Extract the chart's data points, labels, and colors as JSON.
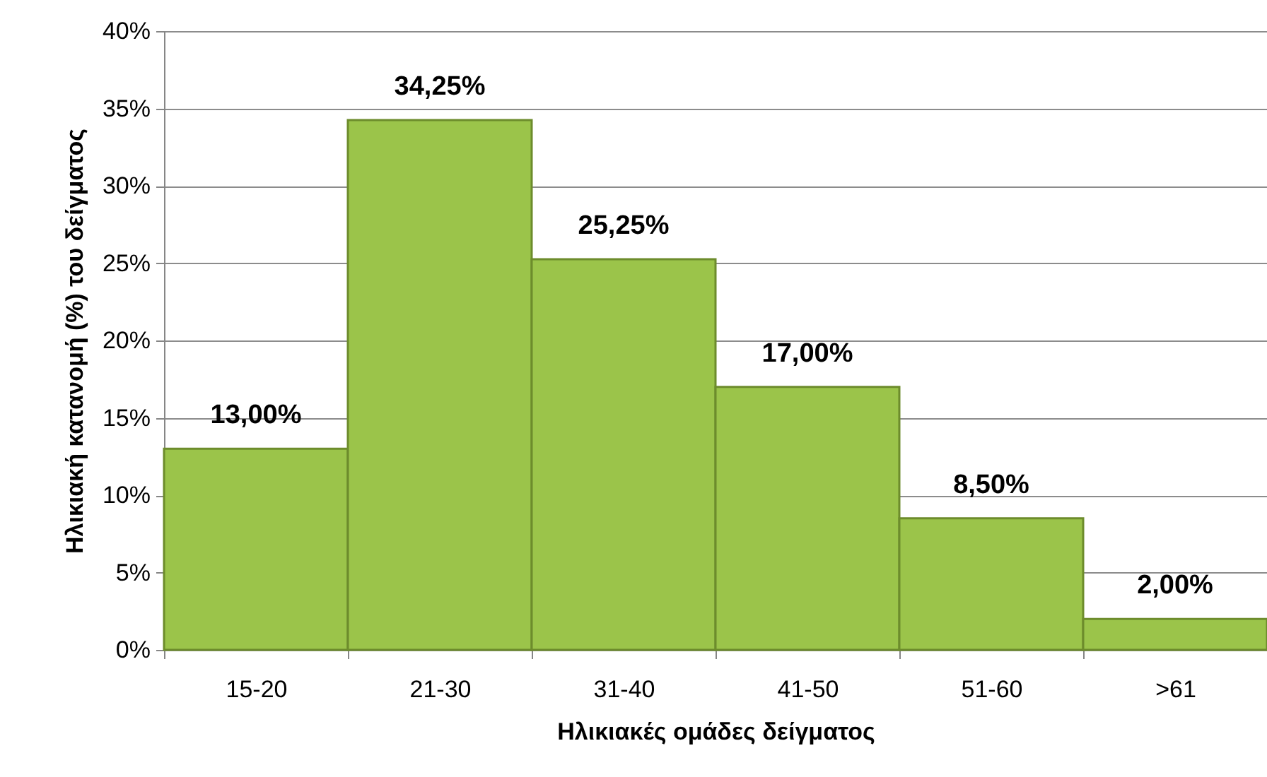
{
  "chart_data": {
    "type": "bar",
    "xlabel": "Ηλικιακές ομάδες δείγματος",
    "ylabel": "Ηλικιακή κατανομή (%) του δείγματος",
    "categories": [
      "15-20",
      "21-30",
      "31-40",
      "41-50",
      "51-60",
      ">61"
    ],
    "values": [
      13,
      34.25,
      25.25,
      17,
      8.5,
      2
    ],
    "value_labels": [
      "13,00%",
      "34,25%",
      "25,25%",
      "17,00%",
      "8,50%",
      "2,00%"
    ],
    "color": "#9bc44a",
    "ylim": [
      0,
      40
    ],
    "yticks": [
      {
        "value": 0,
        "label": "0%"
      },
      {
        "value": 5,
        "label": "5%"
      },
      {
        "value": 10,
        "label": "10%"
      },
      {
        "value": 15,
        "label": "15%"
      },
      {
        "value": 20,
        "label": "20%"
      },
      {
        "value": 25,
        "label": "25%"
      },
      {
        "value": 30,
        "label": "30%"
      },
      {
        "value": 35,
        "label": "35%"
      },
      {
        "value": 40,
        "label": "40%"
      }
    ],
    "grid": "y"
  }
}
